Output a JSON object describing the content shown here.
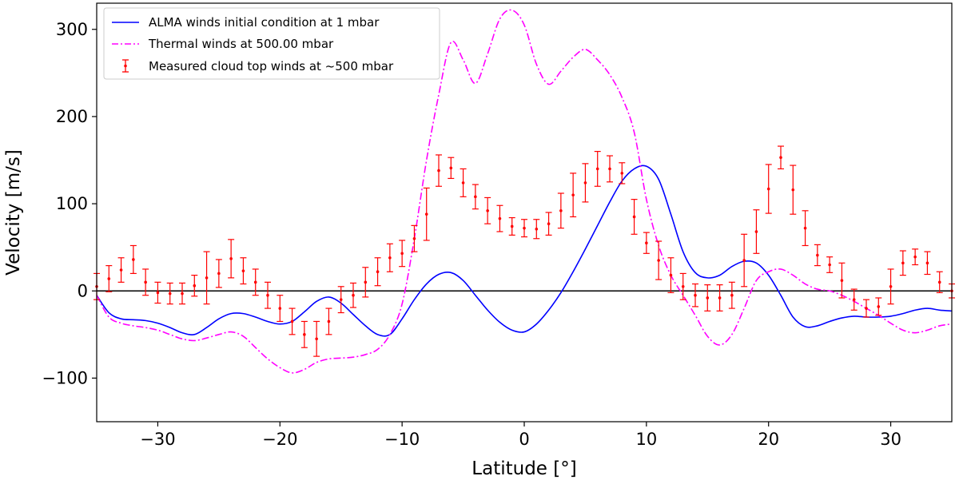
{
  "chart_data": {
    "type": "line",
    "xlabel": "Latitude [°]",
    "ylabel": "Velocity [m/s]",
    "xlim": [
      -35,
      35
    ],
    "ylim": [
      -150,
      330
    ],
    "xticks": [
      -30,
      -20,
      -10,
      0,
      10,
      20,
      30
    ],
    "xtick_labels": [
      "−30",
      "−20",
      "−10",
      "0",
      "10",
      "20",
      "30"
    ],
    "yticks": [
      -100,
      0,
      100,
      200,
      300
    ],
    "ytick_labels": [
      "−100",
      "0",
      "100",
      "200",
      "300"
    ],
    "zero_line": true,
    "legend_position": "upper-left",
    "series": [
      {
        "name": "ALMA winds initial condition at 1 mbar",
        "style": "solid",
        "color": "#0000ff",
        "x": [
          -35,
          -34,
          -33,
          -32,
          -31,
          -30,
          -29,
          -28,
          -27,
          -26,
          -25,
          -24,
          -23,
          -22,
          -21,
          -20,
          -19,
          -18,
          -17,
          -16,
          -15,
          -14,
          -13,
          -12,
          -11,
          -10,
          -9,
          -8,
          -7,
          -6,
          -5,
          -4,
          -3,
          -2,
          -1,
          0,
          1,
          2,
          3,
          4,
          5,
          6,
          7,
          8,
          9,
          10,
          11,
          12,
          13,
          14,
          15,
          16,
          17,
          18,
          19,
          20,
          21,
          22,
          23,
          24,
          25,
          26,
          27,
          28,
          29,
          30,
          31,
          32,
          33,
          34,
          35
        ],
        "y": [
          -5,
          -25,
          -32,
          -33,
          -34,
          -37,
          -42,
          -48,
          -50,
          -42,
          -32,
          -26,
          -26,
          -30,
          -35,
          -38,
          -35,
          -24,
          -12,
          -7,
          -14,
          -27,
          -40,
          -50,
          -50,
          -32,
          -10,
          8,
          19,
          21,
          12,
          -5,
          -22,
          -36,
          -45,
          -47,
          -38,
          -22,
          -2,
          22,
          48,
          75,
          102,
          126,
          140,
          143,
          128,
          88,
          45,
          21,
          15,
          18,
          28,
          34,
          32,
          18,
          -5,
          -30,
          -41,
          -40,
          -35,
          -31,
          -29,
          -30,
          -30,
          -29,
          -26,
          -22,
          -20,
          -22,
          -23
        ]
      },
      {
        "name": "Thermal winds at 500.00 mbar",
        "style": "dashdot",
        "color": "#ff00ff",
        "x": [
          -35,
          -34,
          -33,
          -32,
          -31,
          -30,
          -29,
          -28,
          -27,
          -26,
          -25,
          -24,
          -23,
          -22,
          -21,
          -20,
          -19,
          -18,
          -17,
          -16,
          -15,
          -14,
          -13,
          -12,
          -11,
          -10,
          -9,
          -8,
          -7,
          -6,
          -5,
          -4,
          -3,
          -2,
          -1,
          0,
          1,
          2,
          3,
          4,
          5,
          6,
          7,
          8,
          9,
          10,
          11,
          12,
          13,
          14,
          15,
          16,
          17,
          18,
          19,
          20,
          21,
          22,
          23,
          24,
          25,
          26,
          27,
          28,
          29,
          30,
          31,
          32,
          33,
          34,
          35
        ],
        "y": [
          -5,
          -30,
          -37,
          -40,
          -42,
          -45,
          -50,
          -55,
          -57,
          -54,
          -50,
          -47,
          -52,
          -65,
          -78,
          -88,
          -94,
          -90,
          -82,
          -78,
          -77,
          -76,
          -73,
          -67,
          -50,
          -15,
          60,
          150,
          225,
          285,
          265,
          238,
          272,
          312,
          322,
          305,
          260,
          237,
          252,
          268,
          277,
          265,
          248,
          222,
          182,
          105,
          52,
          18,
          -5,
          -28,
          -52,
          -62,
          -50,
          -20,
          12,
          22,
          25,
          18,
          8,
          2,
          0,
          -5,
          -12,
          -20,
          -28,
          -37,
          -45,
          -48,
          -45,
          -40,
          -38
        ]
      }
    ],
    "errorbars": {
      "name": "Measured cloud top winds at ~500 mbar",
      "legend_label": "Measured cloud top winds at  ~500 mbar",
      "color": "#ff0000",
      "x": [
        -35,
        -34,
        -33,
        -32,
        -31,
        -30,
        -29,
        -28,
        -27,
        -26,
        -25,
        -24,
        -23,
        -22,
        -21,
        -20,
        -19,
        -18,
        -17,
        -16,
        -15,
        -14,
        -13,
        -12,
        -11,
        -10,
        -9,
        -8,
        -7,
        -6,
        -5,
        -4,
        -3,
        -2,
        -1,
        0,
        1,
        2,
        3,
        4,
        5,
        6,
        7,
        8,
        9,
        10,
        11,
        12,
        13,
        14,
        15,
        16,
        17,
        18,
        19,
        20,
        21,
        22,
        23,
        24,
        25,
        26,
        27,
        28,
        29,
        30,
        31,
        32,
        33,
        34,
        35
      ],
      "y": [
        5,
        14,
        24,
        36,
        10,
        -2,
        -3,
        -3,
        6,
        15,
        20,
        37,
        23,
        10,
        -5,
        -20,
        -35,
        -50,
        -55,
        -35,
        -10,
        -5,
        10,
        22,
        38,
        43,
        60,
        88,
        138,
        141,
        124,
        108,
        92,
        83,
        74,
        72,
        71,
        77,
        92,
        110,
        124,
        140,
        140,
        135,
        85,
        55,
        35,
        18,
        5,
        -5,
        -8,
        -8,
        -5,
        35,
        68,
        117,
        153,
        116,
        72,
        41,
        30,
        12,
        -10,
        -20,
        -18,
        5,
        32,
        39,
        32,
        10,
        0
      ],
      "yerr": [
        15,
        15,
        14,
        16,
        15,
        12,
        12,
        12,
        12,
        30,
        16,
        22,
        15,
        15,
        15,
        15,
        15,
        15,
        20,
        15,
        15,
        14,
        17,
        16,
        16,
        15,
        15,
        30,
        18,
        12,
        16,
        14,
        15,
        15,
        10,
        10,
        11,
        13,
        20,
        25,
        22,
        20,
        15,
        12,
        20,
        12,
        22,
        20,
        15,
        13,
        15,
        15,
        15,
        30,
        25,
        28,
        13,
        28,
        20,
        12,
        9,
        20,
        12,
        10,
        10,
        20,
        14,
        9,
        13,
        12,
        8
      ]
    },
    "legend": [
      {
        "label": "ALMA winds initial condition at 1 mbar"
      },
      {
        "label": "Thermal winds at 500.00 mbar"
      },
      {
        "label": "Measured cloud top winds at  ~500 mbar"
      }
    ]
  }
}
